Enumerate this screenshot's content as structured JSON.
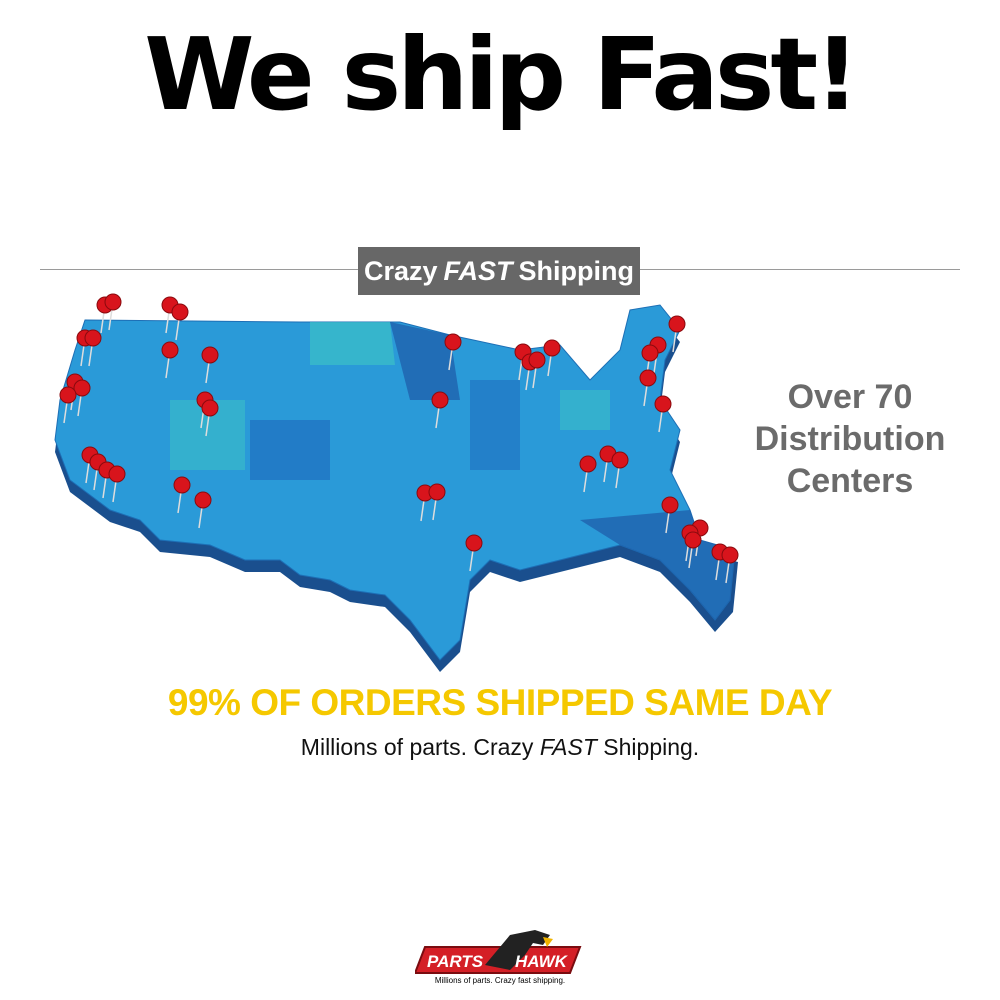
{
  "headline": "We ship Fast!",
  "badge": {
    "pre": "Crazy",
    "emph": "FAST",
    "post": "Shipping"
  },
  "side_text": [
    "Over 70",
    "Distribution",
    "Centers"
  ],
  "promo": "99% OF ORDERS SHIPPED SAME DAY",
  "tagline": {
    "pre": "Millions of parts. Crazy",
    "emph": "FAST",
    "post": "Shipping."
  },
  "logo": {
    "left": "PARTS",
    "right": "HAWK",
    "tagline": "Millions of parts. Crazy fast shipping."
  },
  "colors": {
    "map_blue": "#2a9ad8",
    "map_dark": "#1e5aa8",
    "pin": "#d8141c",
    "promo": "#f5c800",
    "badge": "#676767",
    "logo_red": "#d41f26"
  },
  "icons": {
    "pin": "map-pin-icon",
    "hawk": "hawk-head-icon"
  }
}
